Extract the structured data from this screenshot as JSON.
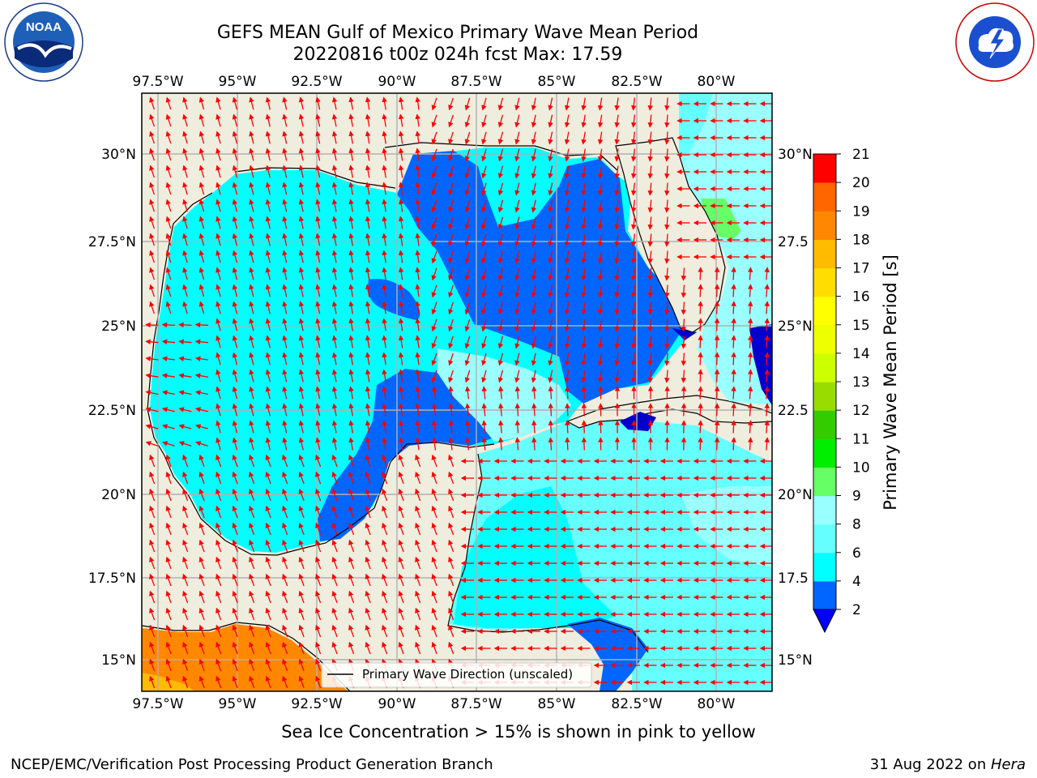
{
  "header": {
    "title_line1": "GEFS MEAN Gulf of Mexico Primary Wave Mean Period",
    "title_line2": "20220816 t00z 024h fcst   Max: 17.59"
  },
  "logos": {
    "left": "NOAA",
    "left_ring_text": "NATIONAL OCEANIC AND ATMOSPHERIC ADMINISTRATION · U.S. DEPARTMENT OF COMMERCE",
    "right_ring_text": "NATIONAL WEATHER SERVICE"
  },
  "map": {
    "lon_labels": [
      "97.5°W",
      "95°W",
      "92.5°W",
      "90°W",
      "87.5°W",
      "85°W",
      "82.5°W",
      "80°W"
    ],
    "lat_labels": [
      "30°N",
      "27.5°N",
      "25°N",
      "22.5°N",
      "20°N",
      "17.5°N",
      "15°N"
    ],
    "right_lat_labels": [
      "30°N",
      "27.5",
      "25°N",
      "22.5",
      "20°N",
      "17.5",
      "15°N"
    ],
    "legend_label": "Primary Wave Direction (unscaled)",
    "arrow_color": "#ff0000",
    "land_color": "#efedde"
  },
  "colorbar": {
    "label": "Primary Wave Mean Period [s]",
    "ticks": [
      "2",
      "4",
      "6",
      "8",
      "9",
      "10",
      "11",
      "12",
      "13",
      "14",
      "15",
      "16",
      "17",
      "18",
      "19",
      "20",
      "21"
    ],
    "colors": [
      "#0066ff",
      "#00ffff",
      "#66ffff",
      "#99ffff",
      "#66ff66",
      "#00ee00",
      "#33cc00",
      "#99dd00",
      "#ccff00",
      "#eeff00",
      "#ffff00",
      "#ffdd00",
      "#ffbb00",
      "#ff8800",
      "#ff6600",
      "#ff3300",
      "#ff0000"
    ],
    "extend_color": "#0000ff"
  },
  "footer": {
    "note": "Sea Ice Concentration > 15% is shown in pink to yellow",
    "credit": "NCEP/EMC/Verification Post Processing Product Generation Branch",
    "date": "31 Aug 2022 on ",
    "machine": "Hera"
  }
}
